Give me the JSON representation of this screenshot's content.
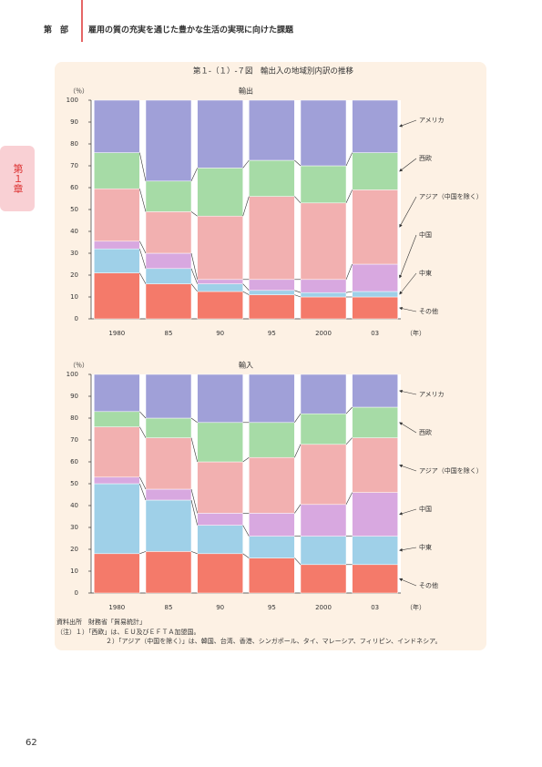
{
  "header": {
    "part": "第　部",
    "title": "雇用の質の充実を通じた豊かな生活の実現に向けた課題"
  },
  "side_tab": "第１章",
  "figure_title": "第１-（１）-７図　輸出入の地域別内訳の推移",
  "chart_data": [
    {
      "type": "bar",
      "stacked": true,
      "title": "輸出",
      "y_label": "（％）",
      "x_unit": "（年）",
      "categories": [
        "1980",
        "85",
        "90",
        "95",
        "2000",
        "03"
      ],
      "ylim": [
        0,
        100
      ],
      "yticks": [
        0,
        10,
        20,
        30,
        40,
        50,
        60,
        70,
        80,
        90,
        100
      ],
      "series": [
        {
          "name": "その他",
          "color": "#f47a6a",
          "values": [
            21,
            16,
            12.5,
            11,
            10,
            10
          ]
        },
        {
          "name": "中東",
          "color": "#9fd0e8",
          "values": [
            11,
            7,
            3.5,
            2,
            2,
            2.5
          ]
        },
        {
          "name": "中国",
          "color": "#d8a8e0",
          "values": [
            3.5,
            7,
            2,
            5,
            6,
            12.5
          ]
        },
        {
          "name": "アジア（中国を除く）",
          "color": "#f2b0b0",
          "values": [
            24,
            19,
            29,
            38,
            35,
            34
          ]
        },
        {
          "name": "西欧",
          "color": "#a6dba6",
          "values": [
            16.5,
            14,
            22,
            16.5,
            17,
            17
          ]
        },
        {
          "name": "アメリカ",
          "color": "#a0a0d8",
          "values": [
            24,
            37,
            31,
            27.5,
            30,
            24
          ]
        }
      ]
    },
    {
      "type": "bar",
      "stacked": true,
      "title": "輸入",
      "y_label": "（％）",
      "x_unit": "（年）",
      "categories": [
        "1980",
        "85",
        "90",
        "95",
        "2000",
        "03"
      ],
      "ylim": [
        0,
        100
      ],
      "yticks": [
        0,
        10,
        20,
        30,
        40,
        50,
        60,
        70,
        80,
        90,
        100
      ],
      "series": [
        {
          "name": "その他",
          "color": "#f47a6a",
          "values": [
            18,
            19,
            18,
            16,
            13,
            13
          ]
        },
        {
          "name": "中東",
          "color": "#9fd0e8",
          "values": [
            32,
            23.5,
            13,
            10,
            13,
            13
          ]
        },
        {
          "name": "中国",
          "color": "#d8a8e0",
          "values": [
            3,
            5,
            5.5,
            10.5,
            14.5,
            20
          ]
        },
        {
          "name": "アジア（中国を除く）",
          "color": "#f2b0b0",
          "values": [
            23,
            23.5,
            23.5,
            25.5,
            27.5,
            25
          ]
        },
        {
          "name": "西欧",
          "color": "#a6dba6",
          "values": [
            7,
            9,
            18,
            16,
            14,
            14
          ]
        },
        {
          "name": "アメリカ",
          "color": "#a0a0d8",
          "values": [
            17,
            20,
            22,
            22,
            18,
            15
          ]
        }
      ]
    }
  ],
  "notes": [
    "資料出所　財務省「貿易統計」",
    "（注）１）「西欧」は、ＥＵ及びＥＦＴＡ加盟国。",
    "２）「アジア（中国を除く）」は、韓国、台湾、香港、シンガポール、タイ、マレーシア、フィリピン、インドネシア。"
  ],
  "page_number": "62"
}
